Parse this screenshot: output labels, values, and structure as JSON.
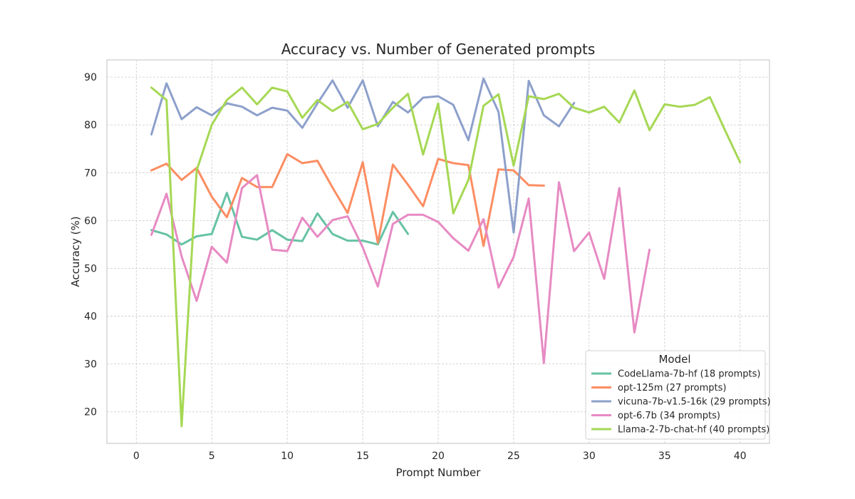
{
  "chart_data": {
    "type": "line",
    "title": "Accuracy vs. Number of Generated prompts",
    "xlabel": "Prompt Number",
    "ylabel": "Accuracy (%)",
    "xlim": [
      -1.95,
      41.95
    ],
    "ylim": [
      13.4,
      93.6
    ],
    "xticks": [
      0,
      5,
      10,
      15,
      20,
      25,
      30,
      35,
      40
    ],
    "yticks": [
      20,
      30,
      40,
      50,
      60,
      70,
      80,
      90
    ],
    "grid": true,
    "legend": {
      "title": "Model",
      "placement": "lower-right"
    },
    "series": [
      {
        "name": "CodeLlama-7b-hf (18 prompts)",
        "color": "#66c2a5",
        "x": [
          1,
          2,
          3,
          4,
          5,
          6,
          7,
          8,
          9,
          10,
          11,
          12,
          13,
          14,
          15,
          16,
          17,
          18
        ],
        "values": [
          58.0,
          57.1,
          55.0,
          56.7,
          57.2,
          65.8,
          56.6,
          56.0,
          58.0,
          56.0,
          55.7,
          61.5,
          57.2,
          55.8,
          55.8,
          55.0,
          61.8,
          57.2
        ]
      },
      {
        "name": "opt-125m (27 prompts)",
        "color": "#fc8d62",
        "x": [
          1,
          2,
          3,
          4,
          5,
          6,
          7,
          8,
          9,
          10,
          11,
          12,
          13,
          14,
          15,
          16,
          17,
          18,
          19,
          20,
          21,
          22,
          23,
          24,
          25,
          26,
          27
        ],
        "values": [
          70.5,
          71.9,
          68.5,
          71.0,
          65.0,
          60.7,
          68.9,
          67.0,
          67.0,
          73.9,
          72.0,
          72.5,
          66.9,
          61.6,
          72.2,
          55.3,
          71.7,
          67.5,
          63.0,
          72.9,
          72.0,
          71.6,
          54.7,
          70.7,
          70.5,
          67.4,
          67.3
        ]
      },
      {
        "name": "vicuna-7b-v1.5-16k (29 prompts)",
        "color": "#8da0cb",
        "x": [
          1,
          2,
          3,
          4,
          5,
          6,
          7,
          8,
          9,
          10,
          11,
          12,
          13,
          14,
          15,
          16,
          17,
          18,
          19,
          20,
          21,
          22,
          23,
          24,
          25,
          26,
          27,
          28,
          29
        ],
        "values": [
          78.0,
          88.7,
          81.2,
          83.7,
          82.0,
          84.5,
          83.8,
          82.0,
          83.6,
          83.0,
          79.4,
          84.5,
          89.3,
          83.6,
          89.3,
          79.7,
          84.8,
          82.6,
          85.7,
          86.0,
          84.2,
          76.8,
          89.7,
          82.7,
          57.5,
          89.2,
          82.0,
          79.7,
          84.6
        ]
      },
      {
        "name": "opt-6.7b (34 prompts)",
        "color": "#e78ac3",
        "x": [
          1,
          2,
          3,
          4,
          5,
          6,
          7,
          8,
          9,
          10,
          11,
          12,
          13,
          14,
          15,
          16,
          17,
          18,
          19,
          20,
          21,
          22,
          23,
          24,
          25,
          26,
          27,
          28,
          29,
          30,
          31,
          32,
          33,
          34
        ],
        "values": [
          57.0,
          65.6,
          52.5,
          43.2,
          54.5,
          51.2,
          66.8,
          69.5,
          53.9,
          53.6,
          60.6,
          56.6,
          60.1,
          60.9,
          54.4,
          46.2,
          59.3,
          61.2,
          61.2,
          59.7,
          56.3,
          53.7,
          60.3,
          46.0,
          52.4,
          64.6,
          30.2,
          68.0,
          53.6,
          57.5,
          47.8,
          66.8,
          36.6,
          53.9
        ]
      },
      {
        "name": "Llama-2-7b-chat-hf (40 prompts)",
        "color": "#a6d854",
        "x": [
          1,
          2,
          3,
          4,
          5,
          6,
          7,
          8,
          9,
          10,
          11,
          12,
          13,
          14,
          15,
          16,
          17,
          18,
          19,
          20,
          21,
          22,
          23,
          24,
          25,
          26,
          27,
          28,
          29,
          30,
          31,
          32,
          33,
          34,
          35,
          36,
          37,
          38,
          39,
          40
        ],
        "values": [
          87.8,
          85.2,
          17.0,
          70.5,
          80.0,
          85.2,
          87.8,
          84.3,
          87.8,
          87.0,
          81.5,
          85.2,
          82.9,
          84.8,
          79.1,
          80.2,
          83.6,
          86.5,
          73.8,
          84.5,
          61.5,
          68.5,
          84.0,
          86.4,
          71.5,
          86.0,
          85.4,
          86.5,
          83.6,
          82.6,
          83.8,
          80.5,
          87.2,
          78.9,
          84.3,
          83.8,
          84.2,
          85.8,
          78.9,
          72.2
        ]
      }
    ]
  }
}
